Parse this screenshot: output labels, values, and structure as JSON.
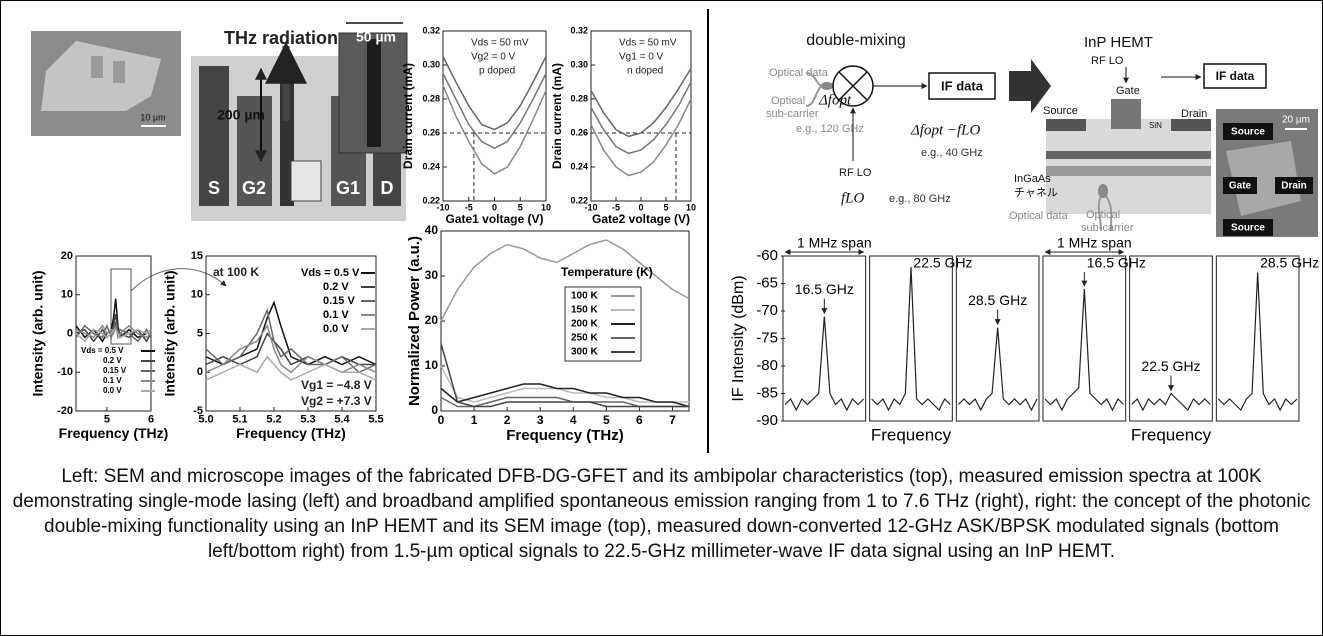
{
  "left_images": {
    "scale_bar": "10 µm",
    "thz_label": "THz radiation",
    "width_label": "50 µm",
    "length_label": "200 µm",
    "electrodes": [
      "S",
      "G2",
      "G1",
      "D"
    ]
  },
  "diagram": {
    "title": "double-mixing",
    "optical_data": "Optical data",
    "optical_subcarrier": [
      "Optical",
      "sub-carrier"
    ],
    "delta_f": "Δfopt",
    "eg_opt": "e.g., 120 GHz",
    "if_data": "IF data",
    "diff": "Δfopt −fLO",
    "eg_if": "e.g., 40 GHz",
    "rf_lo": "RF LO",
    "f_lo": "fLO",
    "eg_lo": "e.g., 80 GHz",
    "hemt_title": "InP HEMT",
    "hemt_rf_lo": "RF LO",
    "gate": "Gate",
    "source": "Source",
    "drain": "Drain",
    "hemt_if": "IF data",
    "sin": "SiN",
    "channel": [
      "InGaAs",
      "チャネル"
    ],
    "hemt_optical_data": "Optical data",
    "hemt_subcarrier": [
      "Optical",
      "sub-carrier"
    ],
    "sem_scale": "20 µm",
    "sem_labels": [
      "Source",
      "Gate",
      "Drain",
      "Source"
    ]
  },
  "chart_data": [
    {
      "type": "line",
      "xlabel": "Gate1 voltage (V)",
      "ylabel": "Drain current (mA)",
      "xlim": [
        -10,
        10
      ],
      "ylim": [
        0.22,
        0.32
      ],
      "xticks": [
        -10,
        -5,
        0,
        5,
        10
      ],
      "yticks": [
        0.22,
        0.24,
        0.26,
        0.28,
        {
          "value": 0.3,
          "label": "0.30"
        },
        0.32
      ],
      "annotations": [
        "Vds = 50 mV",
        "Vg2 = 0 V",
        "p doped"
      ],
      "hline": 0.26,
      "vline": -4,
      "x": [
        -10,
        -7.5,
        -5,
        -2.5,
        0,
        2.5,
        5,
        7.5,
        10
      ],
      "series": [
        {
          "color": "#666",
          "values": [
            0.305,
            0.29,
            0.276,
            0.265,
            0.262,
            0.266,
            0.276,
            0.29,
            0.305
          ]
        },
        {
          "color": "#777",
          "values": [
            0.295,
            0.28,
            0.265,
            0.255,
            0.251,
            0.255,
            0.266,
            0.28,
            0.295
          ]
        },
        {
          "color": "#888",
          "values": [
            0.288,
            0.27,
            0.255,
            0.242,
            0.236,
            0.24,
            0.252,
            0.268,
            0.285
          ]
        }
      ]
    },
    {
      "type": "line",
      "xlabel": "Gate2 voltage (V)",
      "ylabel": "Drain current (mA)",
      "xlim": [
        -10,
        10
      ],
      "ylim": [
        0.22,
        0.32
      ],
      "xticks": [
        -10,
        -5,
        0,
        5,
        10
      ],
      "yticks": [
        0.22,
        0.24,
        0.26,
        0.28,
        {
          "value": 0.3,
          "label": "0.30"
        },
        0.32
      ],
      "annotations": [
        "Vds = 50 mV",
        "Vg1 = 0 V",
        "n doped"
      ],
      "hline": 0.26,
      "vline": 7,
      "x": [
        -10,
        -7.5,
        -5,
        -2.5,
        0,
        2.5,
        5,
        7.5,
        10
      ],
      "series": [
        {
          "color": "#666",
          "values": [
            0.285,
            0.272,
            0.262,
            0.258,
            0.26,
            0.266,
            0.275,
            0.286,
            0.298
          ]
        },
        {
          "color": "#777",
          "values": [
            0.275,
            0.262,
            0.252,
            0.248,
            0.25,
            0.256,
            0.265,
            0.276,
            0.29
          ]
        },
        {
          "color": "#888",
          "values": [
            0.265,
            0.25,
            0.24,
            0.235,
            0.237,
            0.243,
            0.253,
            0.265,
            0.28
          ]
        }
      ]
    },
    {
      "type": "line",
      "xlabel": "Frequency (THz)",
      "ylabel": "Intensity (arb. unit)",
      "xlim": [
        4.3,
        6
      ],
      "ylim": [
        -20,
        20
      ],
      "xticks": [
        5,
        6
      ],
      "yticks": [
        -20,
        -10,
        0,
        10,
        20
      ],
      "x": [
        4.3,
        4.5,
        4.7,
        4.9,
        5.0,
        5.1,
        5.15,
        5.2,
        5.25,
        5.3,
        5.5,
        5.7,
        5.9,
        6.0
      ],
      "series": [
        {
          "name": "Vds = 0.5 V",
          "color": "#111",
          "values": [
            2,
            -1,
            1,
            -2,
            0,
            1,
            4,
            9,
            2,
            -1,
            1,
            -1,
            0,
            1
          ]
        },
        {
          "name": "0.2 V",
          "color": "#444",
          "values": [
            0,
            1,
            -2,
            1,
            -1,
            0,
            2,
            5,
            1,
            0,
            -1,
            1,
            -2,
            0
          ]
        },
        {
          "name": "0.15 V",
          "color": "#666",
          "values": [
            -1,
            2,
            0,
            -1,
            2,
            -1,
            1,
            3,
            0,
            1,
            0,
            -2,
            1,
            -1
          ]
        },
        {
          "name": "0.1 V",
          "color": "#888",
          "values": [
            1,
            0,
            -1,
            2,
            0,
            1,
            0,
            2,
            -1,
            0,
            2,
            0,
            -1,
            0
          ]
        },
        {
          "name": "0.0 V",
          "color": "#aaa",
          "values": [
            0,
            -2,
            1,
            0,
            -1,
            0,
            1,
            1,
            0,
            -1,
            0,
            1,
            0,
            1
          ]
        }
      ]
    },
    {
      "type": "line",
      "xlabel": "Frequency (THz)",
      "ylabel": "Intensity (arb. unit)",
      "xlim": [
        5,
        5.5
      ],
      "ylim": [
        -5,
        15
      ],
      "xticks": [
        {
          "value": 5,
          "label": "5.0"
        },
        5.1,
        5.2,
        5.3,
        5.4,
        5.5
      ],
      "yticks": [
        -5,
        0,
        5,
        10,
        15
      ],
      "annotations": [
        "at 100 K",
        "Vg1 = −4.8 V",
        "Vg2 = +7.3 V"
      ],
      "x": [
        5.0,
        5.05,
        5.1,
        5.15,
        5.18,
        5.2,
        5.22,
        5.25,
        5.3,
        5.35,
        5.4,
        5.45,
        5.5
      ],
      "series": [
        {
          "name": "Vds = 0.5 V",
          "color": "#111",
          "values": [
            2,
            1,
            2,
            3,
            7,
            9,
            6,
            2,
            1,
            2,
            1,
            2,
            1
          ]
        },
        {
          "name": "0.2 V",
          "color": "#444",
          "values": [
            1,
            2,
            1,
            2,
            5,
            4,
            3,
            1,
            2,
            1,
            2,
            1,
            1
          ]
        },
        {
          "name": "0.15 V",
          "color": "#666",
          "values": [
            3,
            1,
            2,
            5,
            8,
            4,
            2,
            3,
            1,
            1,
            2,
            0,
            1
          ]
        },
        {
          "name": "0.1 V",
          "color": "#888",
          "values": [
            0,
            1,
            3,
            4,
            6,
            3,
            1,
            0,
            2,
            1,
            0,
            1,
            0
          ]
        },
        {
          "name": "0.0 V",
          "color": "#aaa",
          "values": [
            -1,
            0,
            1,
            0,
            2,
            1,
            0,
            -1,
            0,
            1,
            0,
            0,
            -1
          ]
        }
      ]
    },
    {
      "type": "line",
      "xlabel": "Frequency (THz)",
      "ylabel": "Normalized Power (a.u.)",
      "xlim": [
        0,
        7.5
      ],
      "ylim": [
        0,
        40
      ],
      "xticks": [
        0,
        1,
        2,
        3,
        4,
        5,
        6,
        7
      ],
      "yticks": [
        0,
        10,
        20,
        30,
        40
      ],
      "legend_title": "Temperature (K)",
      "x": [
        0,
        0.5,
        1,
        1.5,
        2,
        2.5,
        3,
        3.5,
        4,
        4.5,
        5,
        5.5,
        6,
        6.5,
        7,
        7.5
      ],
      "series": [
        {
          "name": "100 K",
          "color": "#999",
          "values": [
            20,
            27,
            32,
            35,
            37,
            36,
            34,
            33,
            35,
            37,
            38,
            36,
            33,
            30,
            27,
            25
          ]
        },
        {
          "name": "150 K",
          "color": "#bbb",
          "values": [
            10,
            3,
            2,
            3,
            4,
            5,
            5,
            5,
            4,
            4,
            3,
            3,
            2,
            2,
            2,
            2
          ]
        },
        {
          "name": "200 K",
          "color": "#222",
          "values": [
            5,
            2,
            3,
            4,
            5,
            6,
            6,
            5,
            5,
            4,
            4,
            3,
            3,
            2,
            2,
            1
          ]
        },
        {
          "name": "250 K",
          "color": "#666",
          "values": [
            3,
            1,
            1,
            2,
            3,
            3,
            3,
            3,
            2,
            2,
            2,
            2,
            1,
            1,
            1,
            1
          ]
        },
        {
          "name": "300 K",
          "color": "#444",
          "values": [
            15,
            2,
            1,
            1,
            2,
            2,
            2,
            2,
            2,
            2,
            1,
            1,
            1,
            1,
            1,
            1
          ]
        }
      ]
    },
    {
      "type": "spectrum",
      "ylabel": "IF Intensity (dBm)",
      "ylim": [
        -90,
        -60
      ],
      "yticks": [
        -60,
        -65,
        -70,
        -75,
        -80,
        -85,
        -90
      ],
      "span_labels": [
        "1 MHz span",
        "1 MHz span"
      ],
      "xlabels": [
        "Frequency",
        "Frequency"
      ],
      "color": "#222",
      "panels": [
        {
          "annotation": "16.5 GHz",
          "values": [
            -87,
            -86,
            -88,
            -86,
            -87,
            -86,
            -85,
            -71,
            -85,
            -87,
            -86,
            -88,
            -86,
            -87,
            -86
          ]
        },
        {
          "annotation": "22.5 GHz",
          "values": [
            -86,
            -87,
            -86,
            -88,
            -86,
            -87,
            -85,
            -62,
            -86,
            -87,
            -86,
            -87,
            -88,
            -86,
            -87
          ]
        },
        {
          "annotation": "28.5 GHz",
          "values": [
            -87,
            -86,
            -87,
            -86,
            -88,
            -86,
            -85,
            -73,
            -86,
            -87,
            -86,
            -87,
            -86,
            -88,
            -86
          ]
        },
        {
          "annotation": "16.5 GHz",
          "values": [
            -86,
            -87,
            -86,
            -88,
            -86,
            -85,
            -84,
            -66,
            -85,
            -86,
            -87,
            -86,
            -88,
            -86,
            -87
          ]
        },
        {
          "annotation": "22.5 GHz",
          "values": [
            -87,
            -86,
            -88,
            -86,
            -87,
            -86,
            -87,
            -85,
            -86,
            -87,
            -88,
            -86,
            -87,
            -86,
            -87
          ]
        },
        {
          "annotation": "28.5 GHz",
          "values": [
            -86,
            -87,
            -86,
            -87,
            -88,
            -86,
            -85,
            -63,
            -85,
            -87,
            -86,
            -88,
            -86,
            -87,
            -86
          ]
        }
      ]
    }
  ],
  "caption": "Left: SEM and microscope images of the fabricated DFB-DG-GFET and its ambipolar characteristics (top), measured emission spectra at 100K demonstrating single-mode lasing (left) and broadband amplified spontaneous emission ranging from 1 to 7.6 THz (right), right: the concept of the photonic double-mixing functionality using an InP HEMT and its SEM image (top), measured down-converted 12-GHz ASK/BPSK modulated signals (bottom left/bottom right) from 1.5-µm optical signals to 22.5-GHz millimeter-wave IF data signal using an InP HEMT."
}
